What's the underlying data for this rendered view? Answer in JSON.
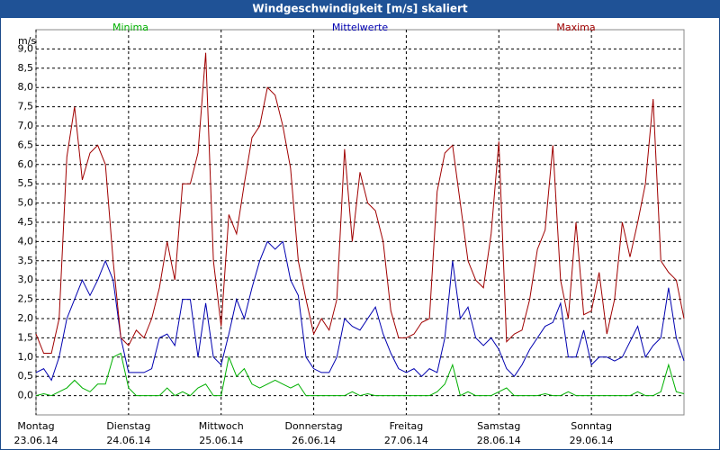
{
  "chart_data": {
    "type": "line",
    "title": "Windgeschwindigkeit [m/s] skaliert",
    "ylabel": "m/s",
    "x": [
      0,
      2,
      4,
      6,
      8,
      10,
      12,
      14,
      16,
      18,
      20,
      22,
      24,
      26,
      28,
      30,
      32,
      34,
      36,
      38,
      40,
      42,
      44,
      46,
      48,
      50,
      52,
      54,
      56,
      58,
      60,
      62,
      64,
      66,
      68,
      70,
      72,
      74,
      76,
      78,
      80,
      82,
      84,
      86,
      88,
      90,
      92,
      94,
      96,
      98,
      100,
      102,
      104,
      106,
      108,
      110,
      112,
      114,
      116,
      118,
      120,
      122,
      124,
      126,
      128,
      130,
      132,
      134,
      136,
      138,
      140,
      142,
      144,
      146,
      148,
      150,
      152,
      154,
      156,
      158,
      160,
      162,
      164,
      166,
      168
    ],
    "series": [
      {
        "name": "Minima",
        "color": "#00b000",
        "values": [
          0,
          0.05,
          0,
          0.1,
          0.2,
          0.4,
          0.2,
          0.1,
          0.3,
          0.3,
          1.0,
          1.1,
          0.2,
          0,
          0,
          0,
          0,
          0.2,
          0,
          0.1,
          0,
          0.2,
          0.3,
          0,
          0,
          1.0,
          0.5,
          0.7,
          0.3,
          0.2,
          0.3,
          0.4,
          0.3,
          0.2,
          0.3,
          0,
          0,
          0,
          0,
          0,
          0,
          0.1,
          0,
          0.05,
          0,
          0,
          0,
          0,
          0,
          0,
          0,
          0,
          0.1,
          0.3,
          0.8,
          0,
          0.1,
          0,
          0,
          0,
          0.1,
          0.2,
          0,
          0,
          0,
          0,
          0.05,
          0,
          0,
          0.1,
          0,
          0,
          0,
          0,
          0,
          0,
          0,
          0,
          0.1,
          0,
          0,
          0.1,
          0.8,
          0.1,
          0.05
        ]
      },
      {
        "name": "Mittelwerte",
        "color": "#0000b0",
        "values": [
          0.6,
          0.7,
          0.4,
          1.0,
          2.0,
          2.5,
          3.0,
          2.6,
          3.0,
          3.5,
          3.0,
          1.5,
          0.6,
          0.6,
          0.6,
          0.7,
          1.5,
          1.6,
          1.3,
          2.5,
          2.5,
          1.0,
          2.4,
          1.0,
          0.8,
          1.6,
          2.5,
          2.0,
          2.8,
          3.5,
          4.0,
          3.8,
          4.0,
          3.0,
          2.6,
          1.0,
          0.7,
          0.6,
          0.6,
          1.0,
          2.0,
          1.8,
          1.7,
          2.0,
          2.3,
          1.6,
          1.1,
          0.7,
          0.6,
          0.7,
          0.5,
          0.7,
          0.6,
          1.5,
          3.5,
          2.0,
          2.3,
          1.5,
          1.3,
          1.5,
          1.2,
          0.7,
          0.5,
          0.8,
          1.2,
          1.5,
          1.8,
          1.9,
          2.4,
          1.0,
          1.0,
          1.7,
          0.8,
          1.0,
          1.0,
          0.9,
          1.0,
          1.4,
          1.8,
          1.0,
          1.3,
          1.5,
          2.8,
          1.5,
          0.9
        ]
      },
      {
        "name": "Maxima",
        "color": "#a00000",
        "values": [
          1.6,
          1.1,
          1.1,
          2.0,
          6.2,
          7.5,
          5.6,
          6.3,
          6.5,
          6.0,
          3.5,
          1.5,
          1.3,
          1.7,
          1.5,
          2.0,
          2.8,
          4.0,
          3.0,
          5.5,
          5.5,
          6.3,
          8.9,
          3.5,
          1.8,
          4.7,
          4.2,
          5.5,
          6.7,
          7.0,
          8.0,
          7.8,
          7.0,
          5.9,
          3.5,
          2.5,
          1.6,
          2.0,
          1.7,
          2.5,
          6.4,
          4.0,
          5.8,
          5.0,
          4.8,
          4.0,
          2.2,
          1.5,
          1.5,
          1.6,
          1.9,
          2.0,
          5.3,
          6.3,
          6.5,
          5.0,
          3.5,
          3.0,
          2.8,
          4.2,
          6.6,
          1.4,
          1.6,
          1.7,
          2.5,
          3.8,
          4.3,
          6.5,
          3.0,
          2.0,
          4.5,
          2.1,
          2.2,
          3.2,
          1.6,
          2.5,
          4.5,
          3.6,
          4.5,
          5.5,
          7.7,
          3.5,
          3.2,
          3.0,
          2.0
        ]
      }
    ],
    "xlim": [
      0,
      168
    ],
    "xticks": [
      {
        "value": 0,
        "label": "Montag",
        "date": "23.06.14"
      },
      {
        "value": 24,
        "label": "Dienstag",
        "date": "24.06.14"
      },
      {
        "value": 48,
        "label": "Mittwoch",
        "date": "25.06.14"
      },
      {
        "value": 72,
        "label": "Donnerstag",
        "date": "26.06.14"
      },
      {
        "value": 96,
        "label": "Freitag",
        "date": "27.06.14"
      },
      {
        "value": 120,
        "label": "Samstag",
        "date": "28.06.14"
      },
      {
        "value": 144,
        "label": "Sonntag",
        "date": "29.06.14"
      }
    ],
    "ylim": [
      -0.5,
      9.5
    ],
    "yticks": [
      {
        "value": 0,
        "label": "0,0"
      },
      {
        "value": 0.5,
        "label": "0,5"
      },
      {
        "value": 1,
        "label": "1,0"
      },
      {
        "value": 1.5,
        "label": "1,5"
      },
      {
        "value": 2,
        "label": "2,0"
      },
      {
        "value": 2.5,
        "label": "2,5"
      },
      {
        "value": 3,
        "label": "3,0"
      },
      {
        "value": 3.5,
        "label": "3,5"
      },
      {
        "value": 4,
        "label": "4,0"
      },
      {
        "value": 4.5,
        "label": "4,5"
      },
      {
        "value": 5,
        "label": "5,0"
      },
      {
        "value": 5.5,
        "label": "5,5"
      },
      {
        "value": 6,
        "label": "6,0"
      },
      {
        "value": 6.5,
        "label": "6,5"
      },
      {
        "value": 7,
        "label": "7,0"
      },
      {
        "value": 7.5,
        "label": "7,5"
      },
      {
        "value": 8,
        "label": "8,0"
      },
      {
        "value": 8.5,
        "label": "8,5"
      },
      {
        "value": 9,
        "label": "9,0"
      }
    ],
    "grid": true
  }
}
